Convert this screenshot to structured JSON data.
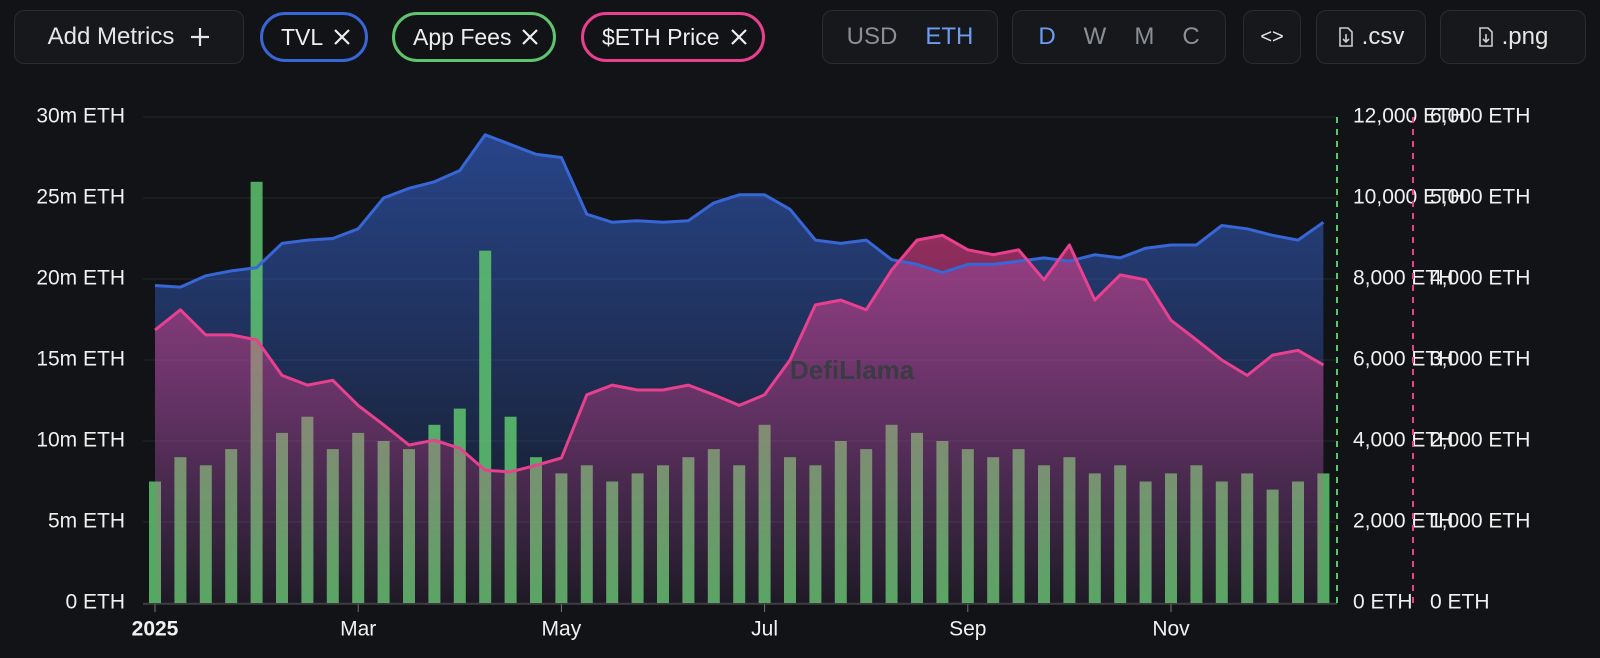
{
  "toolbar": {
    "add_metrics": "Add Metrics",
    "currency": [
      "USD",
      "ETH"
    ],
    "granularity": [
      "D",
      "W",
      "M",
      "C"
    ],
    "embed": "<>",
    "csv": ".csv",
    "png": ".png"
  },
  "watermark": "DefiLlama",
  "chart_data": {
    "type": "area",
    "x": [
      "2025",
      null,
      null,
      null,
      null,
      null,
      null,
      null,
      "Mar",
      null,
      null,
      null,
      null,
      null,
      null,
      null,
      "May",
      null,
      null,
      null,
      null,
      null,
      null,
      null,
      "Jul",
      null,
      null,
      null,
      null,
      null,
      null,
      null,
      "Sep",
      null,
      null,
      null,
      null,
      null,
      null,
      null,
      "Nov",
      null,
      null,
      null,
      null,
      null,
      null
    ],
    "series": [
      {
        "name": "TVL",
        "type": "area",
        "axis": "y",
        "color": "#3766d6",
        "values": [
          19600000,
          19500000,
          20200000,
          20500000,
          20700000,
          22200000,
          22400000,
          22500000,
          23100000,
          25000000,
          25600000,
          26000000,
          26700000,
          28900000,
          28300000,
          27700000,
          27500000,
          24000000,
          23500000,
          23600000,
          23500000,
          23600000,
          24700000,
          25200000,
          25200000,
          24300000,
          22400000,
          22200000,
          22400000,
          21200000,
          20900000,
          20400000,
          20900000,
          20900000,
          21100000,
          21300000,
          21100000,
          21500000,
          21300000,
          21900000,
          22100000,
          22100000,
          23300000,
          23100000,
          22700000,
          22400000,
          23500000
        ]
      },
      {
        "name": "App Fees",
        "type": "bar",
        "axis": "y2",
        "color": "#5ec46e",
        "values": [
          3000,
          3600,
          3400,
          3800,
          10400,
          4200,
          4600,
          3800,
          4200,
          4000,
          3800,
          4400,
          4800,
          8700,
          4600,
          3600,
          3200,
          3400,
          3000,
          3200,
          3400,
          3600,
          3800,
          3400,
          4400,
          3600,
          3400,
          4000,
          3800,
          4400,
          4200,
          4000,
          3800,
          3600,
          3800,
          3400,
          3600,
          3200,
          3400,
          3000,
          3200,
          3400,
          3000,
          3200,
          2800,
          3000,
          3200
        ]
      },
      {
        "name": "$ETH Price",
        "type": "area",
        "axis": "y3",
        "color": "#e8408f",
        "values": [
          3370,
          3620,
          3310,
          3310,
          3250,
          2810,
          2690,
          2750,
          2440,
          2200,
          1950,
          2010,
          1910,
          1640,
          1620,
          1700,
          1790,
          2570,
          2690,
          2630,
          2630,
          2690,
          2570,
          2440,
          2570,
          3000,
          3680,
          3740,
          3620,
          4110,
          4480,
          4540,
          4360,
          4300,
          4360,
          3990,
          4420,
          3740,
          4050,
          3990,
          3490,
          3250,
          3000,
          2810,
          3060,
          3120,
          2940
        ]
      }
    ],
    "ylim": [
      0,
      30000000
    ],
    "yticks": [
      {
        "value": 0,
        "label": "0 ETH"
      },
      {
        "value": 5000000,
        "label": "5m ETH"
      },
      {
        "value": 10000000,
        "label": "10m ETH"
      },
      {
        "value": 15000000,
        "label": "15m ETH"
      },
      {
        "value": 20000000,
        "label": "20m ETH"
      },
      {
        "value": 25000000,
        "label": "25m ETH"
      },
      {
        "value": 30000000,
        "label": "30m ETH"
      }
    ],
    "y2lim": [
      0,
      12000
    ],
    "y2ticks": [
      {
        "value": 0,
        "label": "0 ETH"
      },
      {
        "value": 2000,
        "label": "2,000 ETH"
      },
      {
        "value": 4000,
        "label": "4,000 ETH"
      },
      {
        "value": 6000,
        "label": "6,000 ETH"
      },
      {
        "value": 8000,
        "label": "8,000 ETH"
      },
      {
        "value": 10000,
        "label": "10,000 ETH"
      },
      {
        "value": 12000,
        "label": "12,000 ETH"
      }
    ],
    "y3lim": [
      0,
      6000
    ],
    "y3ticks": [
      {
        "value": 0,
        "label": "0 ETH"
      },
      {
        "value": 1000,
        "label": "1,000 ETH"
      },
      {
        "value": 2000,
        "label": "2,000 ETH"
      },
      {
        "value": 3000,
        "label": "3,000 ETH"
      },
      {
        "value": 4000,
        "label": "4,000 ETH"
      },
      {
        "value": 5000,
        "label": "5,000 ETH"
      },
      {
        "value": 6000,
        "label": "6,000 ETH"
      }
    ],
    "grid": true
  }
}
